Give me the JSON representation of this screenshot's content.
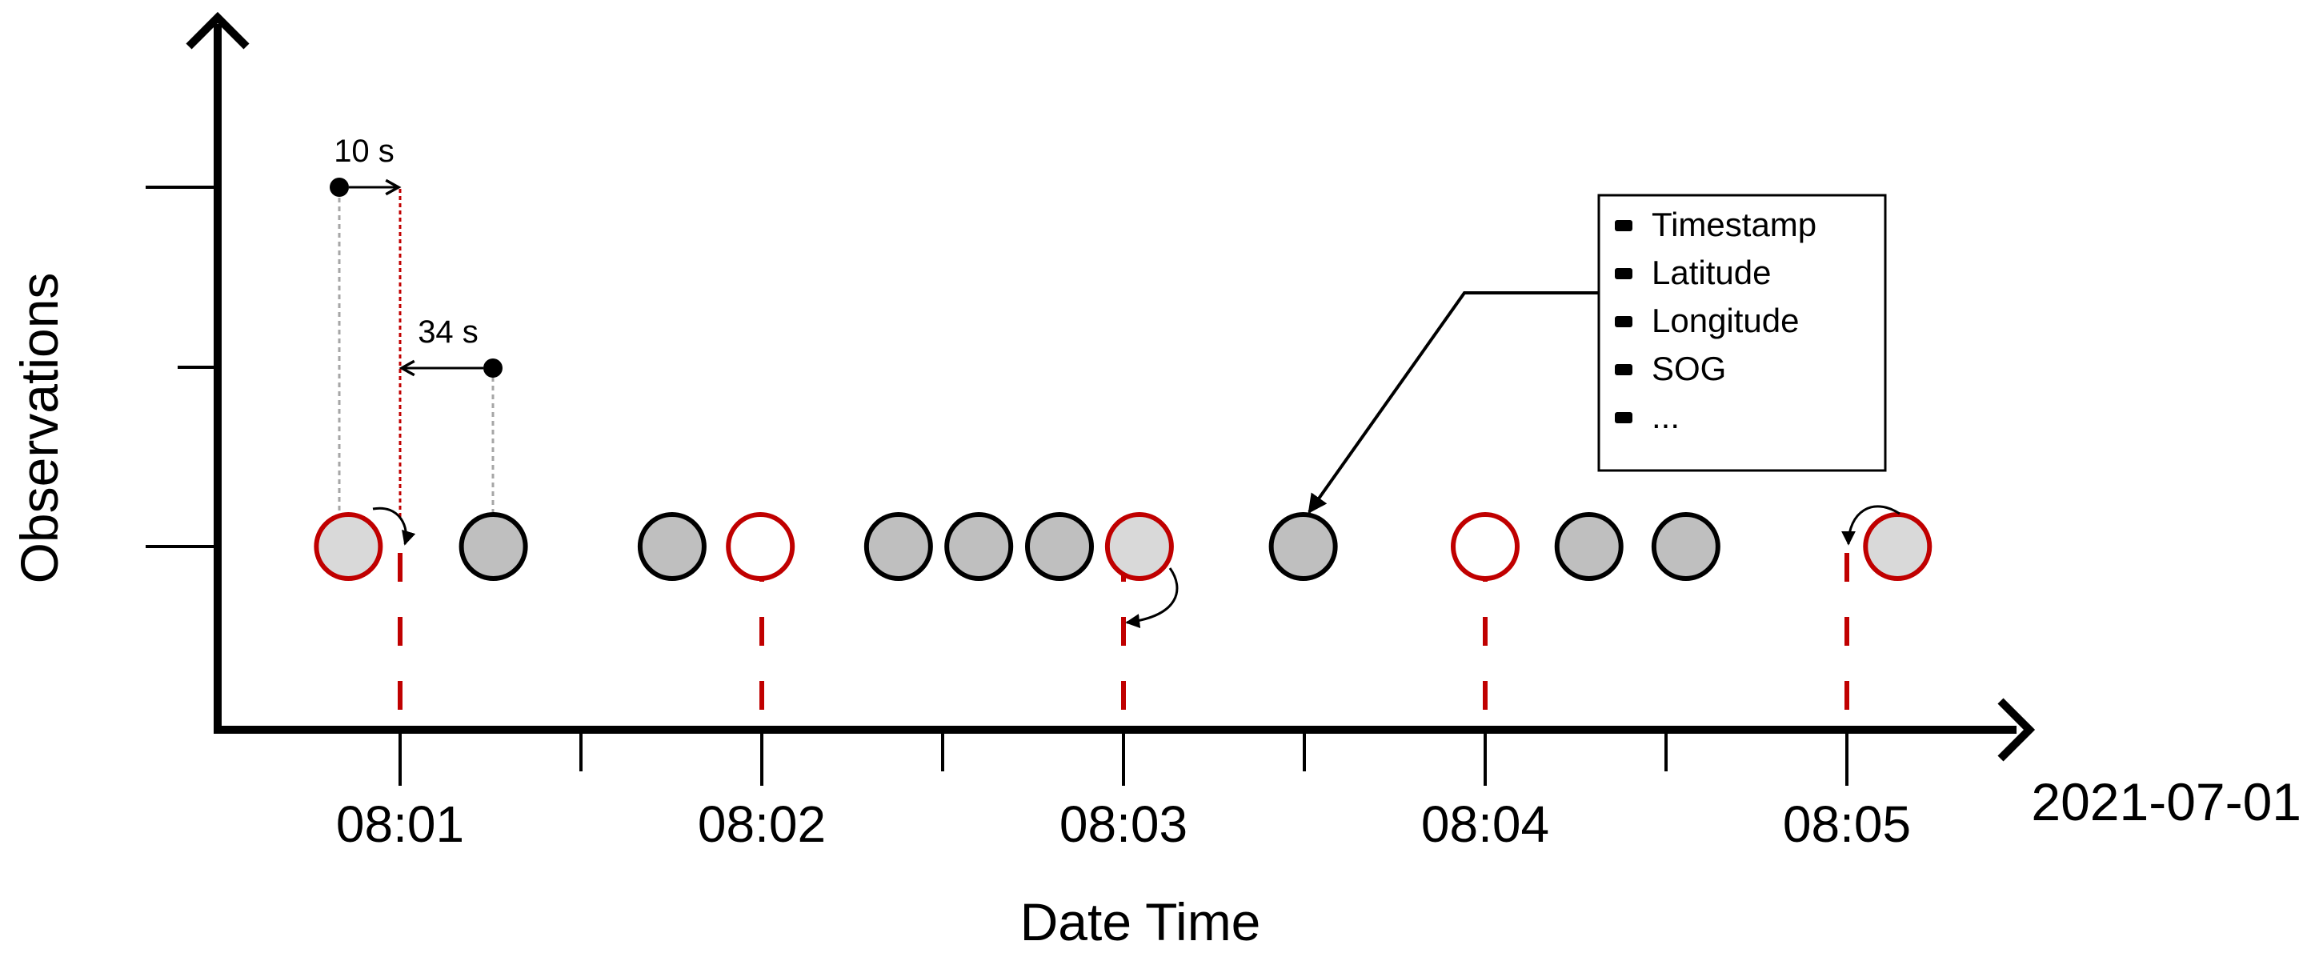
{
  "axes": {
    "x_title": "Date Time",
    "y_title": "Observations",
    "date_label": "2021-07-01",
    "x_ticks": [
      {
        "minute": 1,
        "label": "08:01"
      },
      {
        "minute": 1.5,
        "label": ""
      },
      {
        "minute": 2,
        "label": "08:02"
      },
      {
        "minute": 2.5,
        "label": ""
      },
      {
        "minute": 3,
        "label": "08:03"
      },
      {
        "minute": 3.5,
        "label": ""
      },
      {
        "minute": 4,
        "label": "08:04"
      },
      {
        "minute": 4.5,
        "label": ""
      },
      {
        "minute": 5,
        "label": "08:05"
      }
    ]
  },
  "observations": [
    {
      "minute": 0.857,
      "kind": "interpolated"
    },
    {
      "minute": 1.258,
      "kind": "original"
    },
    {
      "minute": 1.752,
      "kind": "original"
    },
    {
      "minute": 1.996,
      "kind": "resampled"
    },
    {
      "minute": 2.378,
      "kind": "original"
    },
    {
      "minute": 2.6,
      "kind": "original"
    },
    {
      "minute": 2.823,
      "kind": "original"
    },
    {
      "minute": 3.044,
      "kind": "interpolated"
    },
    {
      "minute": 3.497,
      "kind": "original"
    },
    {
      "minute": 4.0,
      "kind": "resampled"
    },
    {
      "minute": 4.287,
      "kind": "original"
    },
    {
      "minute": 4.555,
      "kind": "original"
    },
    {
      "minute": 5.14,
      "kind": "interpolated"
    }
  ],
  "resample_minutes": [
    1,
    2,
    3,
    4,
    5
  ],
  "intervals": [
    {
      "label": "10 s"
    },
    {
      "label": "34 s"
    }
  ],
  "attributes": {
    "items": [
      "Timestamp",
      "Latitude",
      "Longitude",
      "SOG",
      "..."
    ]
  },
  "colors": {
    "axis": "#000000",
    "resample_line": "#c00000",
    "original_fill": "#bfbfbf",
    "interpolated_fill": "#d9d9d9",
    "resampled_fill": "#ffffff",
    "guide": "#a6a6a6"
  }
}
